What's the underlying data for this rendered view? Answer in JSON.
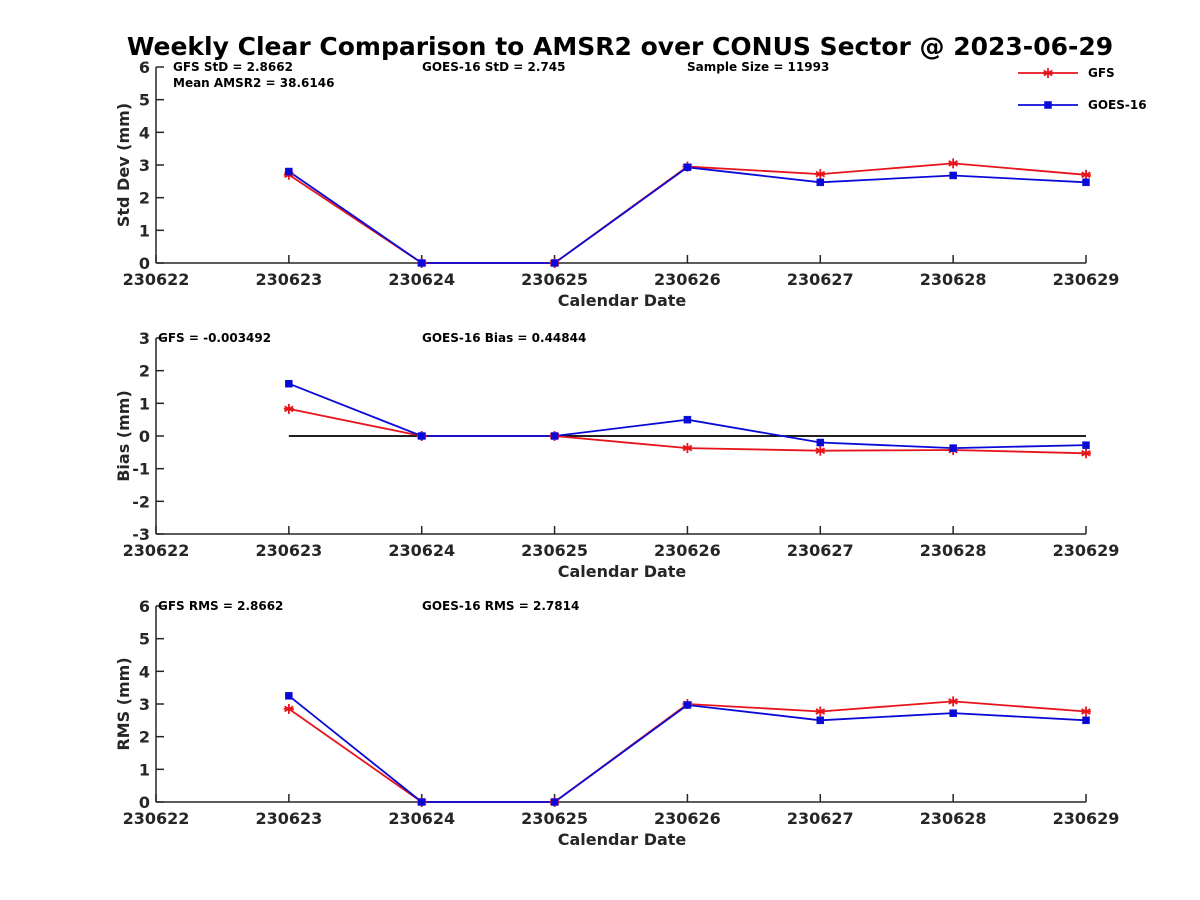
{
  "title": "Weekly Clear Comparison to AMSR2 over CONUS Sector @ 2023-06-29",
  "colors": {
    "gfs": "#e8141c",
    "goes": "#0a0ad8",
    "zero_line": "#000000",
    "axis": "#262626"
  },
  "legend": {
    "placement": "top-right",
    "items": [
      {
        "label": "GFS",
        "series": "gfs",
        "marker": "asterisk"
      },
      {
        "label": "GOES-16",
        "series": "goes",
        "marker": "square"
      }
    ]
  },
  "chart_data": [
    {
      "type": "line",
      "ylabel": "Std Dev (mm)",
      "xlabel": "Calendar Date",
      "x": [
        "230622",
        "230623",
        "230624",
        "230625",
        "230626",
        "230627",
        "230628",
        "230629"
      ],
      "yticks": [
        "0",
        "1",
        "2",
        "3",
        "4",
        "5",
        "6"
      ],
      "ylim": [
        0,
        6
      ],
      "zero_line": false,
      "annotations": [
        {
          "id": "gfs_std",
          "text": "GFS StD = 2.8662",
          "col": 0,
          "row": 0
        },
        {
          "id": "goes_std",
          "text": "GOES-16 StD = 2.745",
          "col": 1,
          "row": 0
        },
        {
          "id": "sample",
          "text": "Sample Size = 11993",
          "col": 2,
          "row": 0
        },
        {
          "id": "mean",
          "text": "Mean AMSR2 = 38.6146",
          "col": 0,
          "row": 1
        }
      ],
      "series": [
        {
          "name": "GFS",
          "key": "gfs",
          "values": [
            null,
            2.7,
            0.0,
            0.0,
            2.95,
            2.72,
            3.05,
            2.7
          ]
        },
        {
          "name": "GOES-16",
          "key": "goes",
          "values": [
            null,
            2.8,
            0.0,
            0.0,
            2.93,
            2.47,
            2.68,
            2.47
          ]
        }
      ]
    },
    {
      "type": "line",
      "ylabel": "Bias (mm)",
      "xlabel": "Calendar Date",
      "x": [
        "230622",
        "230623",
        "230624",
        "230625",
        "230626",
        "230627",
        "230628",
        "230629"
      ],
      "yticks": [
        "-3",
        "-2",
        "-1",
        "0",
        "1",
        "2",
        "3"
      ],
      "ylim": [
        -3,
        3
      ],
      "zero_line": true,
      "annotations": [
        {
          "id": "gfs_bias",
          "text": "GFS = -0.003492",
          "col": 0,
          "row": 0
        },
        {
          "id": "goes_bias",
          "text": "GOES-16 Bias  = 0.44844",
          "col": 1,
          "row": 0
        }
      ],
      "series": [
        {
          "name": "GFS",
          "key": "gfs",
          "values": [
            null,
            0.83,
            0.0,
            0.0,
            -0.37,
            -0.45,
            -0.43,
            -0.53
          ]
        },
        {
          "name": "GOES-16",
          "key": "goes",
          "values": [
            null,
            1.6,
            0.0,
            0.0,
            0.5,
            -0.2,
            -0.37,
            -0.28
          ]
        }
      ]
    },
    {
      "type": "line",
      "ylabel": "RMS (mm)",
      "xlabel": "Calendar Date",
      "x": [
        "230622",
        "230623",
        "230624",
        "230625",
        "230626",
        "230627",
        "230628",
        "230629"
      ],
      "yticks": [
        "0",
        "1",
        "2",
        "3",
        "4",
        "5",
        "6"
      ],
      "ylim": [
        0,
        6
      ],
      "zero_line": false,
      "annotations": [
        {
          "id": "gfs_rms",
          "text": "GFS RMS = 2.8662",
          "col": 0,
          "row": 0
        },
        {
          "id": "goes_rms",
          "text": "GOES-16 RMS = 2.7814",
          "col": 1,
          "row": 0
        }
      ],
      "series": [
        {
          "name": "GFS",
          "key": "gfs",
          "values": [
            null,
            2.85,
            0.0,
            0.0,
            3.0,
            2.77,
            3.08,
            2.77
          ]
        },
        {
          "name": "GOES-16",
          "key": "goes",
          "values": [
            null,
            3.25,
            0.0,
            0.0,
            2.97,
            2.5,
            2.72,
            2.5
          ]
        }
      ]
    }
  ]
}
